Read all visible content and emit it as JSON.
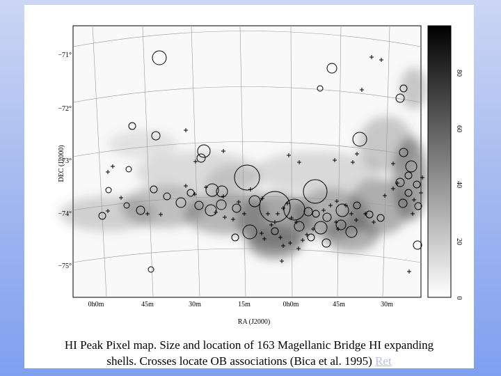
{
  "figure": {
    "axis": {
      "dec_label": "DEC (J2000)",
      "ra_label": "RA (J2000)",
      "dec_ticks": [
        "−71°",
        "−72°",
        "−73°",
        "−74°",
        "−75°"
      ],
      "ra_ticks": [
        "0h0m",
        "45m",
        "30m",
        "15m",
        "0h0m",
        "45m",
        "30m"
      ]
    },
    "colorbar": {
      "ticks": [
        "0",
        "20",
        "40",
        "60",
        "80"
      ]
    }
  },
  "caption": {
    "line1": "HI Peak Pixel map. Size and location of 163 Magellanic Bridge HI expanding",
    "line2": "shells. Crosses locate OB associations (Bica et al. 1995)",
    "link": "Ret"
  }
}
